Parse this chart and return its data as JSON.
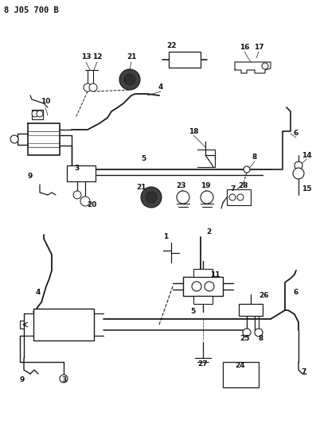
{
  "title": "8 J05 700 B",
  "bg_color": "#ffffff",
  "line_color": "#1a1a1a",
  "text_color": "#111111",
  "title_fontsize": 7.5,
  "label_fontsize": 6.5,
  "figsize": [
    3.97,
    5.33
  ],
  "dpi": 100
}
